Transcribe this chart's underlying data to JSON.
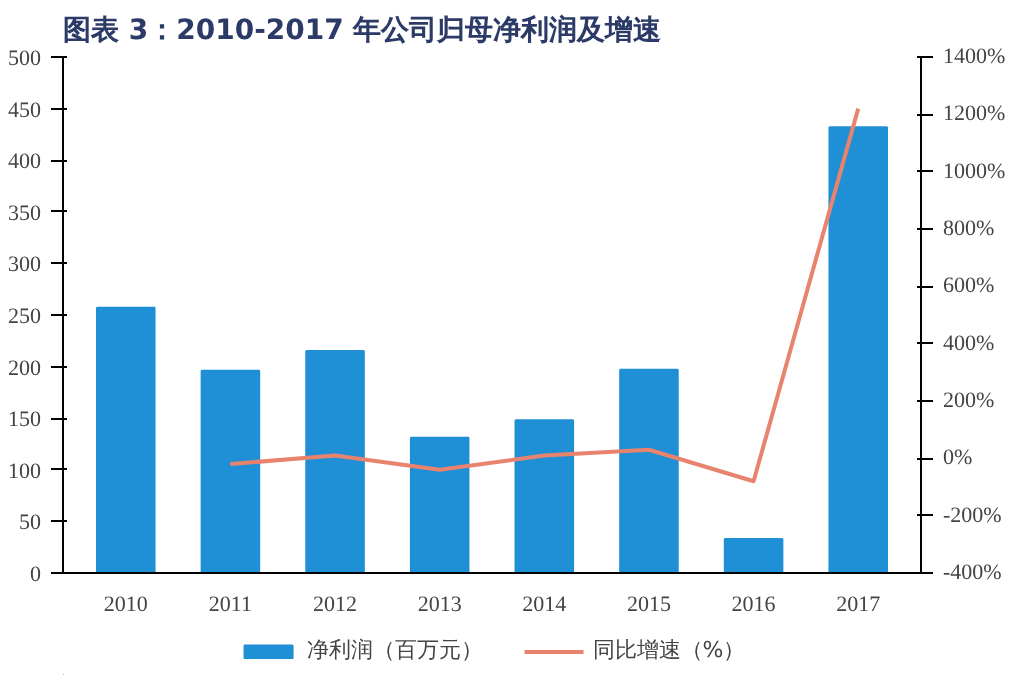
{
  "chart_data": {
    "type": "bar",
    "title": "图表 3：2010-2017 年公司归母净利润及增速",
    "categories": [
      "2010",
      "2011",
      "2012",
      "2013",
      "2014",
      "2015",
      "2016",
      "2017"
    ],
    "series": [
      {
        "name": "净利润（百万元）",
        "color": "#1f8fd6",
        "values": [
          257,
          196,
          215,
          131,
          148,
          197,
          33,
          432
        ]
      },
      {
        "name": "同比增速（%）",
        "type": "line",
        "axis": "y2",
        "color": "#e8836e",
        "values": [
          null,
          -20,
          10,
          -40,
          10,
          30,
          -80,
          1220
        ]
      }
    ],
    "ylim": [
      0,
      500
    ],
    "yticks": [
      0,
      50,
      100,
      150,
      200,
      250,
      300,
      350,
      400,
      450,
      500
    ],
    "y2lim": [
      -400,
      1400
    ],
    "y2ticks": [
      {
        "value": -400,
        "label": "-400%"
      },
      {
        "value": -200,
        "label": "-200%"
      },
      {
        "value": 0,
        "label": "0%"
      },
      {
        "value": 200,
        "label": "200%"
      },
      {
        "value": 400,
        "label": "400%"
      },
      {
        "value": 600,
        "label": "600%"
      },
      {
        "value": 800,
        "label": "800%"
      },
      {
        "value": 1000,
        "label": "1000%"
      },
      {
        "value": 1200,
        "label": "1200%"
      },
      {
        "value": 1400,
        "label": "1400%"
      }
    ],
    "grid": false,
    "legend": "bottom"
  }
}
